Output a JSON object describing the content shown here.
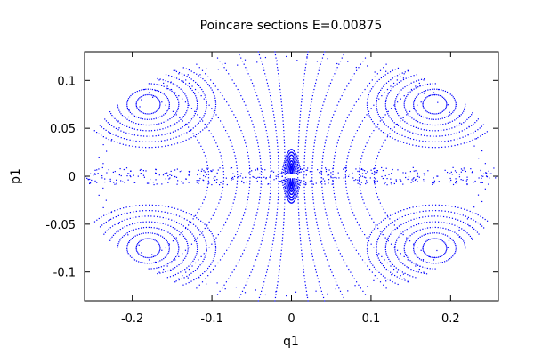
{
  "chart_data": {
    "type": "scatter",
    "title": "Poincare sections E=0.00875",
    "xlabel": "q1",
    "ylabel": "p1",
    "xlim": [
      -0.26,
      0.26
    ],
    "ylim": [
      -0.13,
      0.13
    ],
    "x_ticks": [
      -0.2,
      -0.1,
      0,
      0.1,
      0.2
    ],
    "x_tick_labels": [
      "-0.2",
      "-0.1",
      "0",
      "0.1",
      "0.2"
    ],
    "y_ticks": [
      -0.1,
      -0.05,
      0,
      0.05,
      0.1
    ],
    "y_tick_labels": [
      "-0.1",
      "-0.05",
      "0",
      "0.05",
      "0.1"
    ],
    "grid": false,
    "legend": "none",
    "point_color": "#0000ff",
    "series": [
      {
        "description_of_points": "Poincare section orbits: nested island chains around four elliptic centers near (±0.18, ±0.075), separatrix-like curves through origin, chaotic band along p1=0",
        "islands": [
          {
            "center": [
              -0.18,
              0.075
            ],
            "rx_range": [
              0.015,
              0.085
            ],
            "ry_range": [
              0.01,
              0.045
            ]
          },
          {
            "center": [
              0.18,
              0.075
            ],
            "rx_range": [
              0.015,
              0.085
            ],
            "ry_range": [
              0.01,
              0.045
            ]
          },
          {
            "center": [
              -0.18,
              -0.075
            ],
            "rx_range": [
              0.015,
              0.085
            ],
            "ry_range": [
              0.01,
              0.045
            ]
          },
          {
            "center": [
              0.18,
              -0.075
            ],
            "rx_range": [
              0.015,
              0.085
            ],
            "ry_range": [
              0.01,
              0.045
            ]
          }
        ]
      }
    ]
  }
}
